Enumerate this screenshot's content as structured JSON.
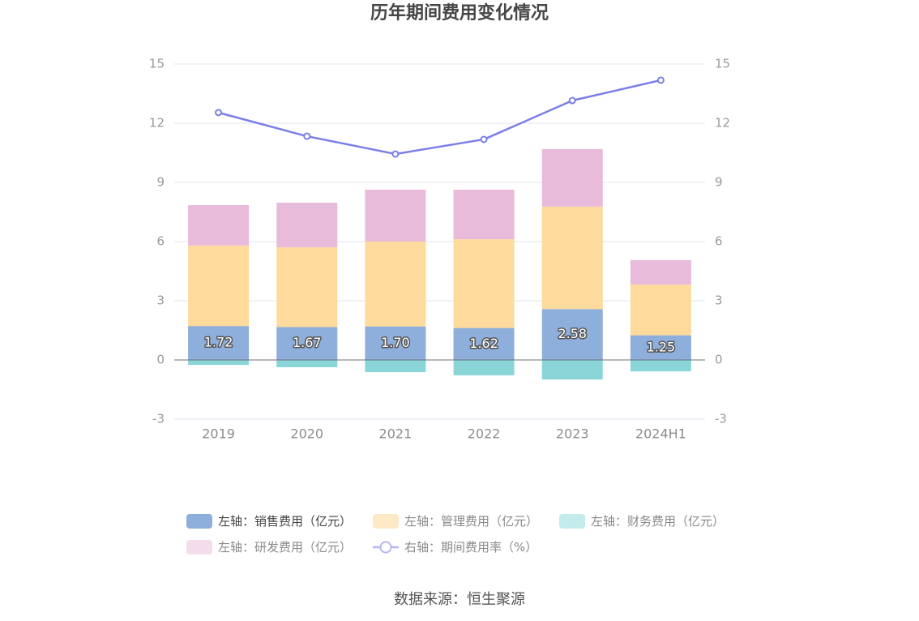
{
  "source": "数据来源：恒生聚源",
  "chart_data": {
    "type": "bar",
    "title": "历年期间费用变化情况",
    "categories": [
      "2019",
      "2020",
      "2021",
      "2022",
      "2023",
      "2024H1"
    ],
    "y_left": {
      "min": -3,
      "max": 15,
      "ticks": [
        -3,
        0,
        3,
        6,
        9,
        12,
        15
      ]
    },
    "y_right": {
      "min": -3,
      "max": 15,
      "ticks": [
        -3,
        0,
        3,
        6,
        9,
        12,
        15
      ]
    },
    "grid": true,
    "legend_position": "bottom",
    "series": [
      {
        "name": "左轴：销售费用（亿元）",
        "type": "bar",
        "axis": "left",
        "stacked": true,
        "data_labels": true,
        "values": [
          1.72,
          1.67,
          1.7,
          1.62,
          2.58,
          1.25
        ],
        "color": "#8eaedb",
        "legend_color": "#8eaedb",
        "legend_text_color": "#444444"
      },
      {
        "name": "左轴：管理费用（亿元）",
        "type": "bar",
        "axis": "left",
        "stacked": true,
        "data_labels": false,
        "values": [
          4.08,
          4.04,
          4.3,
          4.5,
          5.19,
          2.57
        ],
        "color": "#fedb9c",
        "legend_color": "#fee9c6",
        "legend_text_color": "#8a8a8a"
      },
      {
        "name": "左轴：财务费用（亿元）",
        "type": "bar",
        "axis": "left",
        "stacked": true,
        "data_labels": false,
        "values": [
          -0.25,
          -0.37,
          -0.62,
          -0.78,
          -0.99,
          -0.58
        ],
        "color": "#8ad5d8",
        "legend_color": "#c4ebec",
        "legend_text_color": "#8a8a8a"
      },
      {
        "name": "左轴：研发费用（亿元）",
        "type": "bar",
        "axis": "left",
        "stacked": true,
        "data_labels": false,
        "values": [
          2.05,
          2.26,
          2.63,
          2.51,
          2.92,
          1.24
        ],
        "color": "#e8bbda",
        "legend_color": "#f4dcec",
        "legend_text_color": "#8a8a8a"
      },
      {
        "name": "右轴：期间费用率（%）",
        "type": "line",
        "axis": "right",
        "data_labels": false,
        "values": [
          12.54,
          11.34,
          10.44,
          11.18,
          13.15,
          14.18
        ],
        "color": "#7b7fe6",
        "legend_color": "#b5b7f2",
        "legend_text_color": "#8a8a8a"
      }
    ]
  }
}
